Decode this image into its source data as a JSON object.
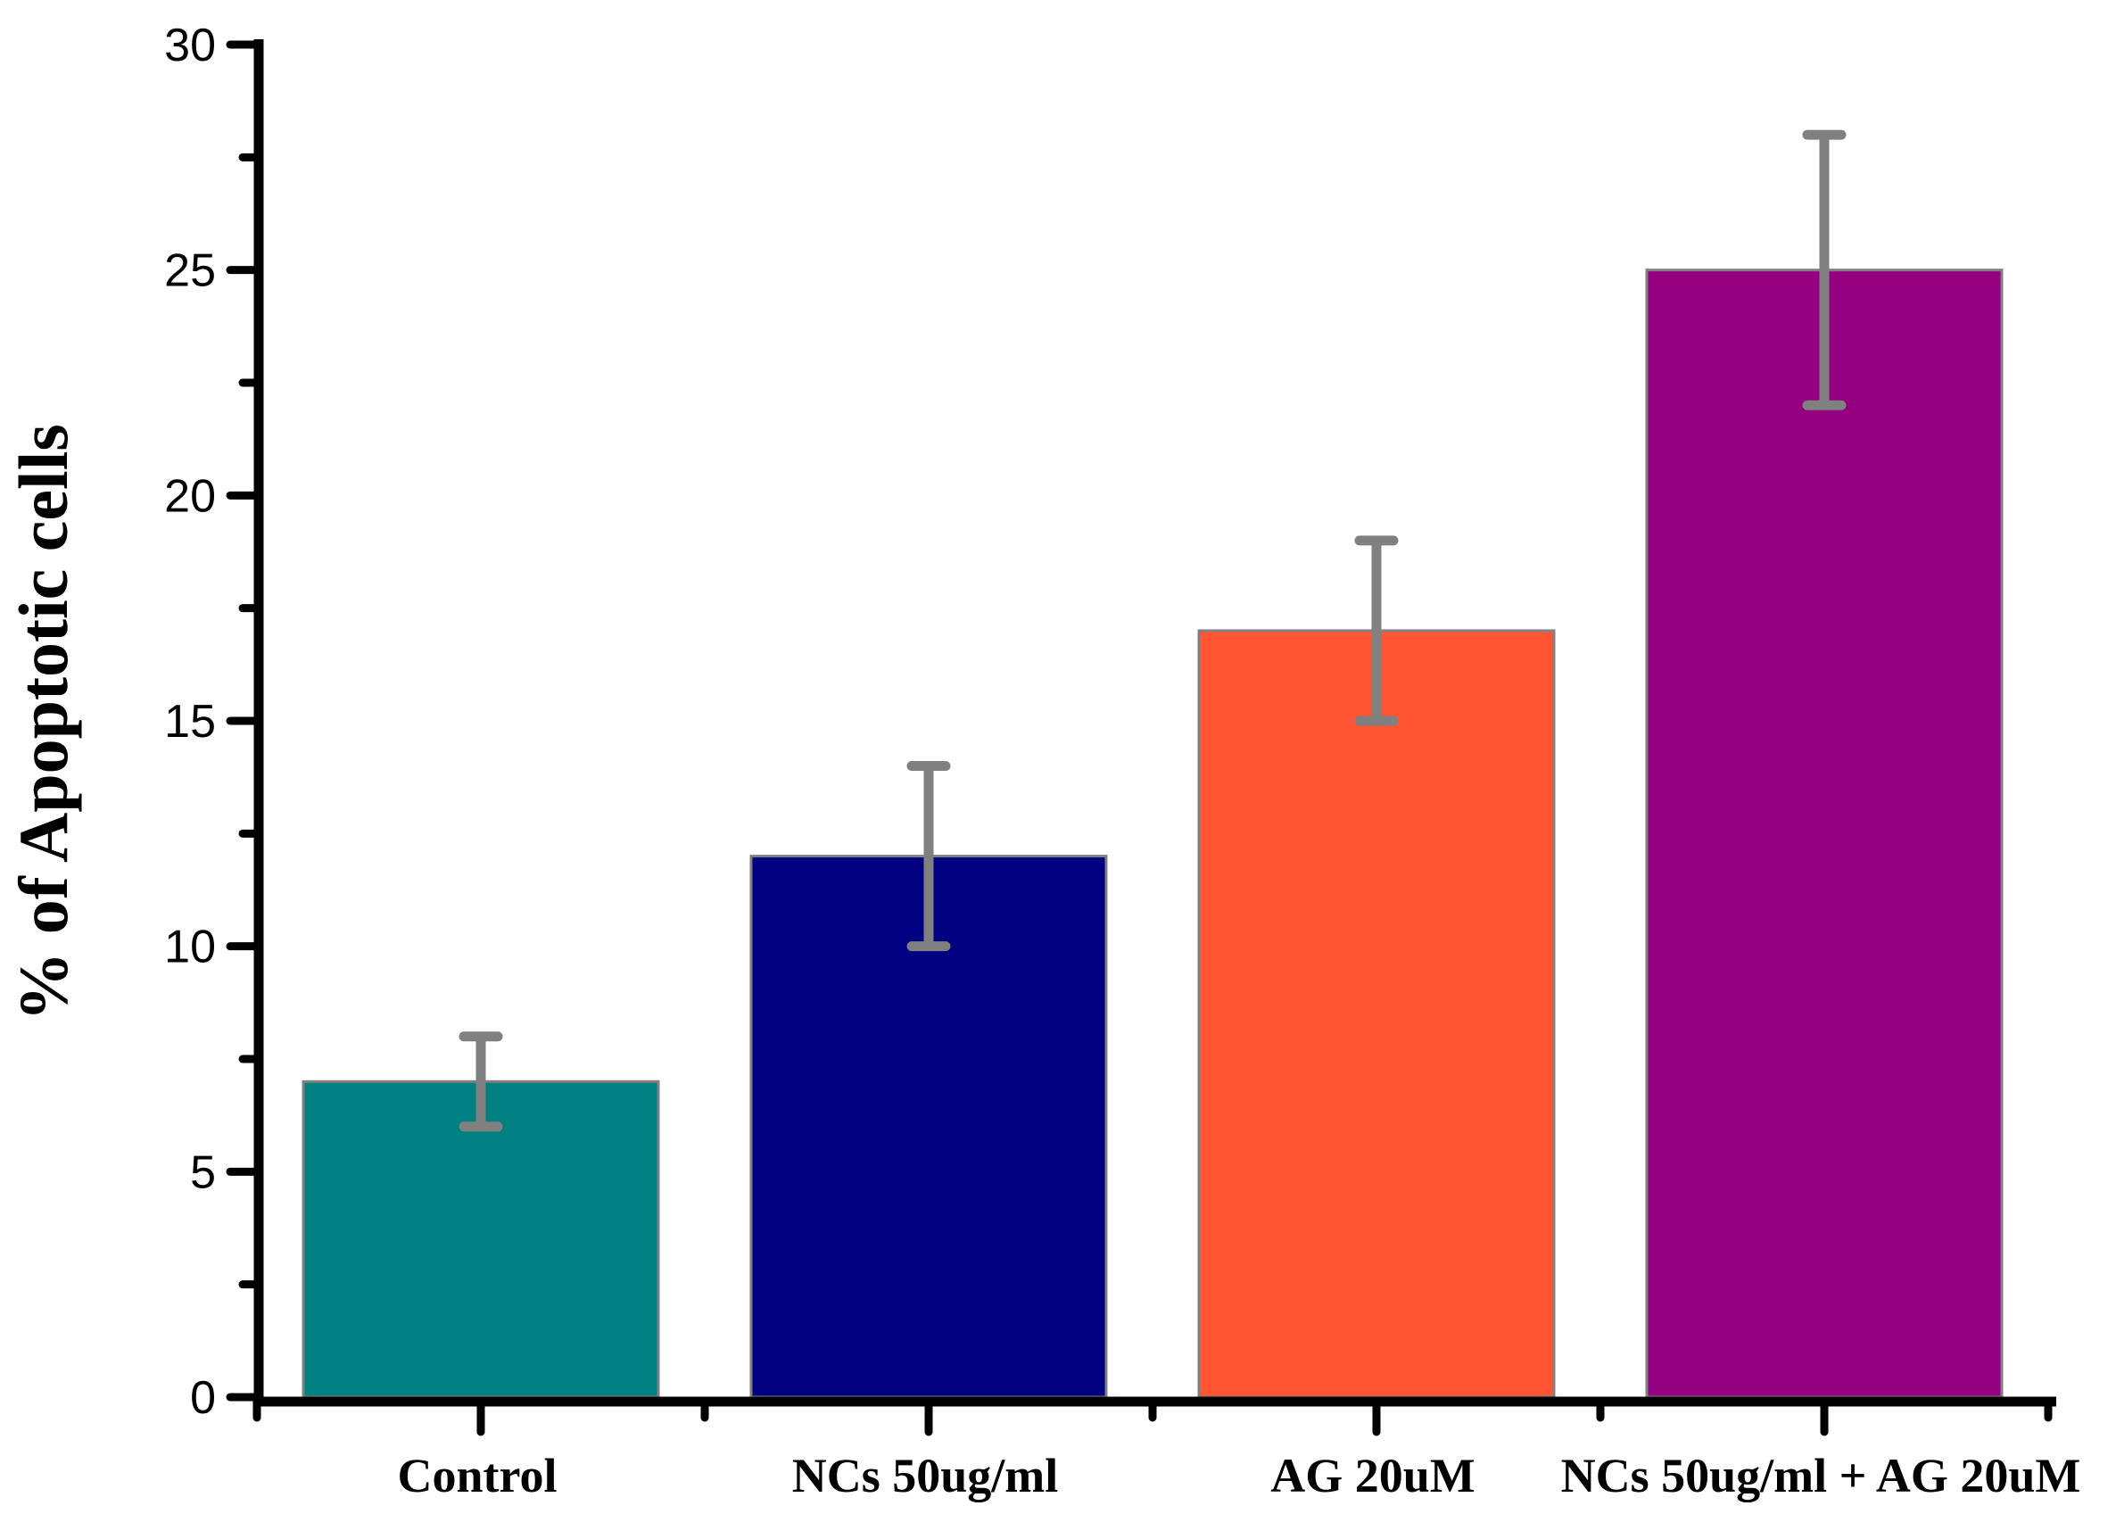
{
  "chart_data": {
    "type": "bar",
    "title": "",
    "xlabel": "",
    "ylabel": "% of Apoptotic cells",
    "ylim": [
      0,
      30
    ],
    "yticks": [
      0,
      5,
      10,
      15,
      20,
      25,
      30
    ],
    "categories": [
      "Control",
      "NCs 50ug/ml",
      "AG 20uM",
      "NCs 50ug/ml + AG 20uM"
    ],
    "values": [
      7,
      12,
      17,
      25
    ],
    "error_low": [
      6,
      10,
      15,
      22
    ],
    "error_high": [
      8,
      14,
      19,
      28
    ],
    "bar_colors": [
      "#008080",
      "#000080",
      "#FF5533",
      "#940080"
    ],
    "bar_edge_color": "#808080",
    "error_bar_color": "#808080",
    "grid": false,
    "legend": "none"
  }
}
